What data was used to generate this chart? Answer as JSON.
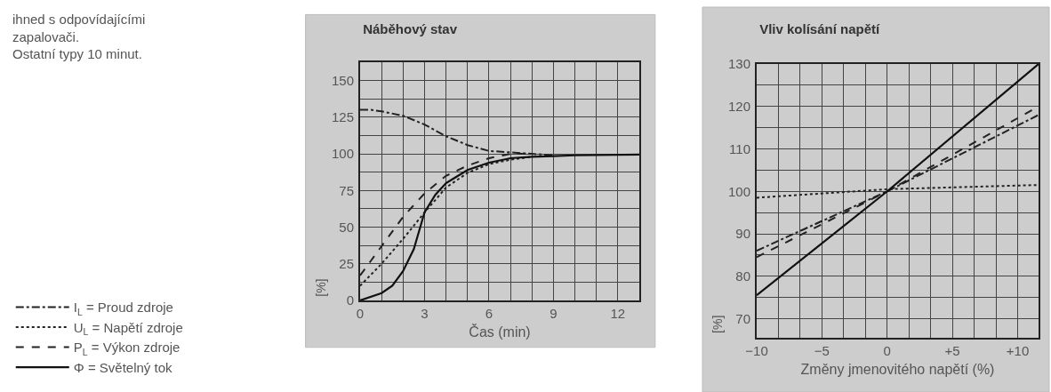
{
  "chart_data": [
    {
      "type": "line",
      "title": "Náběhový stav",
      "xlabel": "Čas (min)",
      "ylabel": "[%]",
      "annotations": [
        "ihned s odpovídajícími\nzapalovači.\nOstatní typy 10 minut."
      ],
      "xlim": [
        0,
        13
      ],
      "ylim": [
        0,
        162.5
      ],
      "xticks": [
        0,
        {
          "value": 1,
          "label": null
        },
        {
          "value": 2,
          "label": null
        },
        3,
        {
          "value": 4,
          "label": null
        },
        {
          "value": 5,
          "label": null
        },
        6,
        {
          "value": 7,
          "label": null
        },
        {
          "value": 8,
          "label": null
        },
        9,
        {
          "value": 10,
          "label": null
        },
        {
          "value": 11,
          "label": null
        },
        12
      ],
      "yticks": [
        0,
        {
          "value": 12.5,
          "label": null
        },
        25,
        {
          "value": 37.5,
          "label": null
        },
        50,
        {
          "value": 62.5,
          "label": null
        },
        75,
        {
          "value": 87.5,
          "label": null
        },
        100,
        {
          "value": 112.5,
          "label": null
        },
        125,
        {
          "value": 137.5,
          "label": null
        },
        150
      ],
      "grid": true,
      "legend": "bottom left",
      "marker": "none",
      "series": [
        {
          "name": "I$_{L}$ = Proud zdroje",
          "color": "#222222",
          "line_style": "dashdot",
          "x": [
            0,
            0.5,
            1,
            2,
            3,
            4,
            5,
            6,
            7,
            8,
            9
          ],
          "values": [
            130,
            130,
            129,
            126,
            120,
            112,
            106,
            102,
            101,
            100,
            99
          ]
        },
        {
          "name": "U$_{L}$ = Napětí zdroje",
          "color": "#222222",
          "line_style": "dotted",
          "x": [
            0,
            1,
            2,
            3,
            4,
            5,
            6,
            7,
            8
          ],
          "values": [
            10,
            25,
            42,
            60,
            77,
            87,
            93,
            96,
            98
          ]
        },
        {
          "name": "P$_{L}$ = Výkon zdroje",
          "color": "#222222",
          "line_style": "dashed",
          "x": [
            0,
            0.5,
            1,
            2,
            3,
            4,
            5,
            6,
            7,
            8
          ],
          "values": [
            17,
            27,
            37,
            57,
            73,
            85,
            92,
            97,
            100,
            100
          ]
        },
        {
          "name": "Φ = Světelný tok",
          "color": "#111111",
          "line_style": "solid",
          "x": [
            0,
            1,
            1.5,
            2,
            2.5,
            2.8,
            3,
            3.5,
            4,
            5,
            6,
            7,
            8,
            9,
            10,
            13
          ],
          "values": [
            0,
            5,
            10,
            20,
            35,
            50,
            60,
            72,
            80,
            89,
            94,
            97,
            98,
            98.5,
            99,
            99.5
          ]
        }
      ]
    },
    {
      "type": "line",
      "title": "Vliv kolísání napětí",
      "xlabel": "Změny jmenovitého napětí (%)",
      "ylabel": "[%]",
      "xlim": [
        -10,
        11.6
      ],
      "ylim": [
        65.5,
        130
      ],
      "xticks": [
        {
          "value": -10,
          "label": "−10"
        },
        {
          "value": -8.33,
          "label": null
        },
        {
          "value": -6.67,
          "label": null
        },
        {
          "value": -5,
          "label": "−5"
        },
        {
          "value": -3.33,
          "label": null
        },
        {
          "value": -1.67,
          "label": null
        },
        0,
        {
          "value": 1.67,
          "label": null
        },
        {
          "value": 3.33,
          "label": null
        },
        {
          "value": 5,
          "label": "+5"
        },
        {
          "value": 6.67,
          "label": null
        },
        {
          "value": 8.33,
          "label": null
        },
        {
          "value": 10,
          "label": "+10"
        }
      ],
      "yticks": [
        70,
        {
          "value": 75,
          "label": null
        },
        80,
        {
          "value": 85,
          "label": null
        },
        90,
        {
          "value": 95,
          "label": null
        },
        100,
        {
          "value": 105,
          "label": null
        },
        110,
        {
          "value": 115,
          "label": null
        },
        120,
        {
          "value": 125,
          "label": null
        },
        130
      ],
      "grid": true,
      "marker": "none",
      "series": [
        {
          "color": "#222222",
          "line_style": "dashdot",
          "x": [
            -10,
            0,
            11.6
          ],
          "values": [
            86,
            100,
            118
          ]
        },
        {
          "color": "#222222",
          "line_style": "dotted",
          "x": [
            -10,
            0,
            11.6
          ],
          "values": [
            98.5,
            100.5,
            101.5
          ]
        },
        {
          "color": "#222222",
          "line_style": "dashed",
          "x": [
            -10,
            0,
            11.6
          ],
          "values": [
            84.5,
            100,
            120
          ]
        },
        {
          "color": "#111111",
          "line_style": "solid",
          "x": [
            -10,
            0,
            11.6
          ],
          "values": [
            75.5,
            100,
            130
          ]
        }
      ]
    }
  ]
}
